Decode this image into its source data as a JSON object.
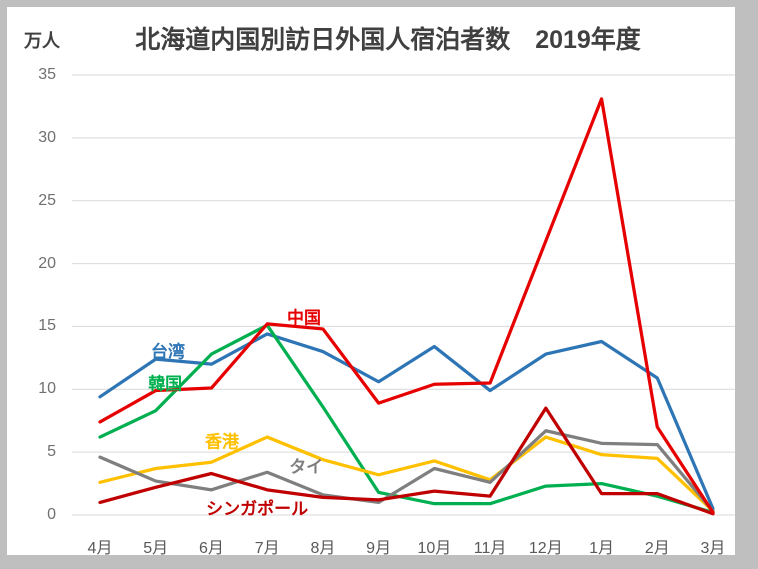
{
  "colors": {
    "frame": "#bfbfbf",
    "plot-bg": "#ffffff",
    "gridline": "#d9d9d9",
    "title-text": "#404040",
    "unit-text": "#404040",
    "ytick-text": "#707070",
    "xtick-text": "#595959"
  },
  "chart_data": {
    "type": "line",
    "title": "北海道内国別訪日外国人宿泊者数　2019年度",
    "y_unit_label": "万人",
    "xlabel": "",
    "ylabel": "万人",
    "categories": [
      "4月",
      "5月",
      "6月",
      "7月",
      "8月",
      "9月",
      "10月",
      "11月",
      "12月",
      "1月",
      "2月",
      "3月"
    ],
    "ylim": [
      0,
      35
    ],
    "yticks": [
      0,
      5,
      10,
      15,
      20,
      25,
      30,
      35
    ],
    "grid": true,
    "legend_position": "inline-labels-next-to-lines",
    "series": [
      {
        "name": "台湾",
        "id": "taiwan",
        "color": "#2e75b6",
        "values": [
          9.4,
          12.4,
          12.0,
          14.4,
          13.0,
          10.6,
          13.4,
          9.9,
          12.8,
          13.8,
          10.9,
          0.5
        ],
        "label": {
          "xi": 1.22,
          "yv": 13.1
        }
      },
      {
        "name": "韓国",
        "id": "korea",
        "color": "#00b050",
        "values": [
          6.2,
          8.3,
          12.8,
          15.1,
          8.6,
          1.8,
          0.9,
          0.9,
          2.3,
          2.5,
          1.5,
          0.2
        ],
        "label": {
          "xi": 1.17,
          "yv": 10.6
        }
      },
      {
        "name": "香港",
        "id": "hongkong",
        "color": "#ffc000",
        "values": [
          2.6,
          3.7,
          4.2,
          6.2,
          4.4,
          3.2,
          4.3,
          2.8,
          6.2,
          4.8,
          4.5,
          0.3
        ],
        "label": {
          "xi": 2.19,
          "yv": 6.0
        }
      },
      {
        "name": "タイ",
        "id": "thailand",
        "color": "#7f7f7f",
        "values": [
          4.6,
          2.7,
          2.0,
          3.4,
          1.6,
          1.0,
          3.7,
          2.6,
          6.7,
          5.7,
          5.6,
          0.3
        ],
        "label": {
          "xi": 3.7,
          "yv": 4.0
        }
      },
      {
        "name": "シンガポール",
        "id": "singapore",
        "color": "#c00000",
        "values": [
          1.0,
          2.2,
          3.3,
          2.0,
          1.4,
          1.2,
          1.9,
          1.5,
          8.5,
          1.7,
          1.7,
          0.1
        ],
        "label": {
          "xi": 2.82,
          "yv": 0.6
        }
      },
      {
        "name": "中国",
        "id": "china",
        "color": "#e60000",
        "values": [
          7.4,
          9.9,
          10.1,
          15.2,
          14.8,
          8.9,
          10.4,
          10.5,
          21.8,
          33.1,
          7.0,
          0.2
        ],
        "label": {
          "xi": 3.66,
          "yv": 15.8
        }
      }
    ]
  }
}
